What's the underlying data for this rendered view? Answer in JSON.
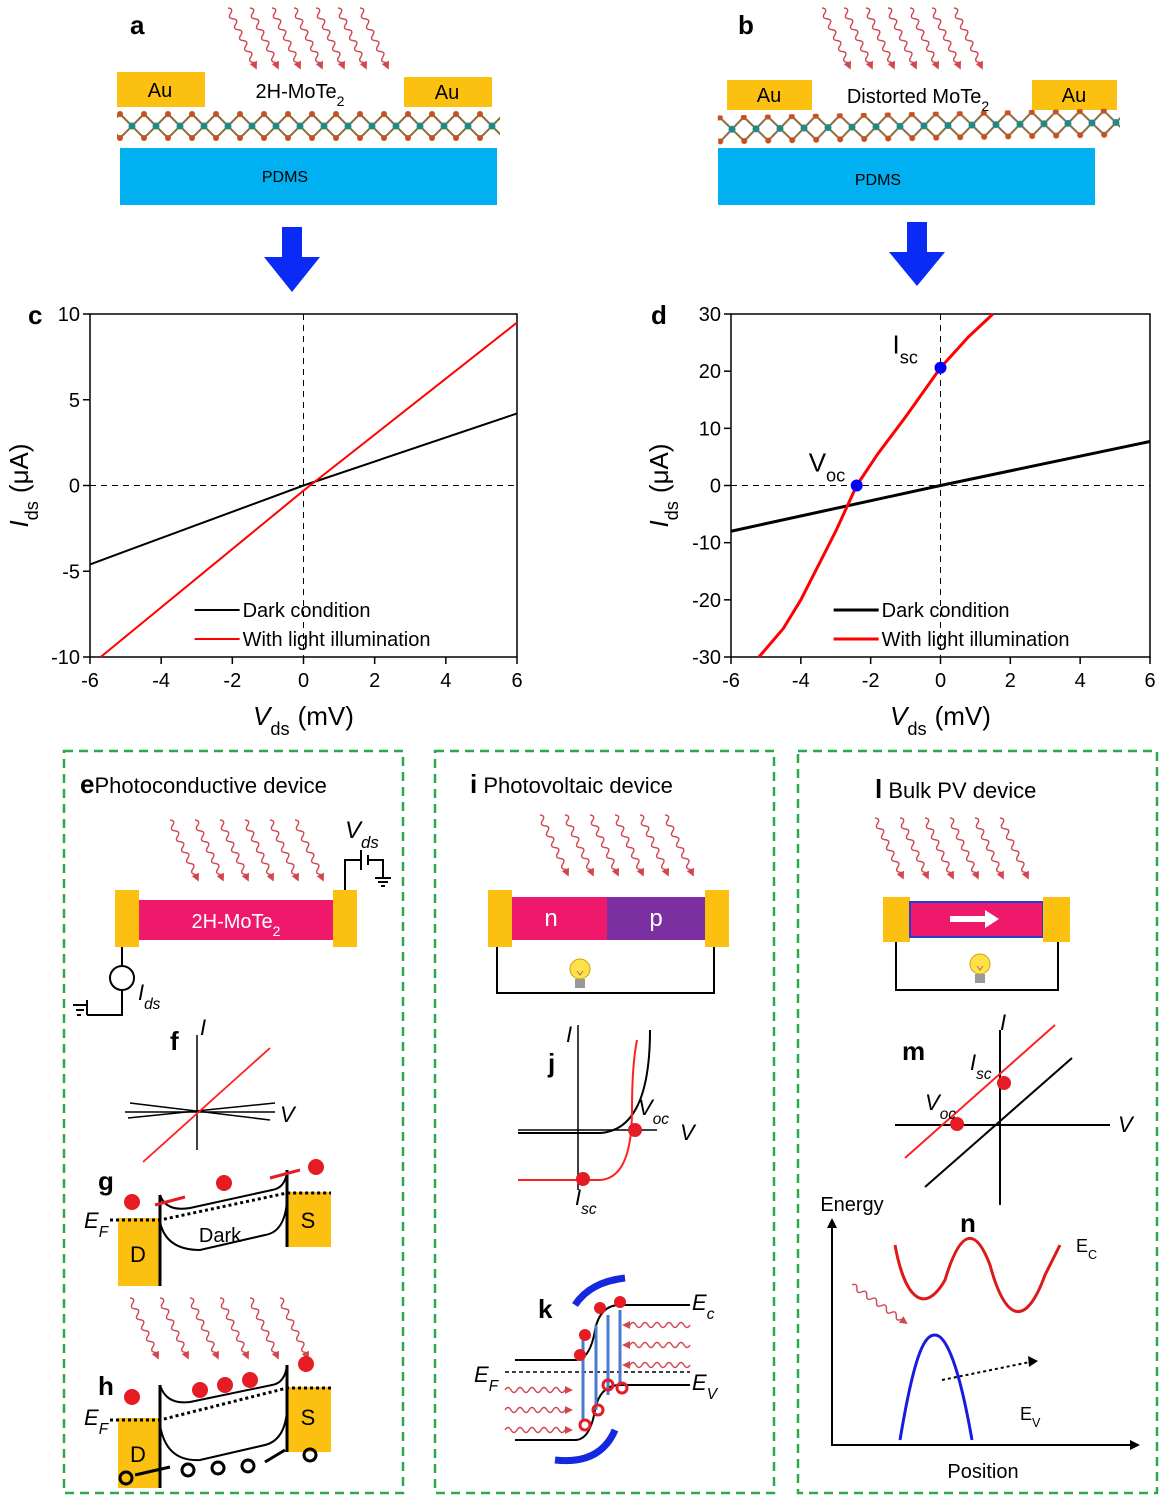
{
  "panels": {
    "a": {
      "label": "a",
      "electrode_left": "Au",
      "electrode_right": "Au",
      "material": {
        "text": "2H-MoTe",
        "sub": "2"
      },
      "substrate": "PDMS"
    },
    "b": {
      "label": "b",
      "electrode_left": "Au",
      "electrode_right": "Au",
      "material": {
        "text": "Distorted MoTe",
        "sub": "2"
      },
      "substrate": "PDMS"
    },
    "e": {
      "label": "e",
      "title": "Photoconductive device",
      "source": {
        "text": "V",
        "sub": "ds"
      },
      "channel": {
        "text": "2H-MoTe",
        "sub": "2"
      },
      "meter": {
        "text": "I",
        "sub": "ds"
      }
    },
    "f": {
      "label": "f",
      "y_axis": "I",
      "x_axis": "V"
    },
    "g": {
      "label": "g",
      "fermi": {
        "text": "E",
        "sub": "F"
      },
      "condition": "Dark",
      "drain": "D",
      "source": "S"
    },
    "h": {
      "label": "h",
      "fermi": {
        "text": "E",
        "sub": "F"
      },
      "drain": "D",
      "source": "S"
    },
    "i": {
      "label": "i",
      "title": "Photovoltaic device",
      "n": "n",
      "p": "p"
    },
    "j": {
      "label": "j",
      "y_axis": "I",
      "x_axis": "V",
      "voc": {
        "text": "V",
        "sub": "oc"
      },
      "isc": {
        "text": "I",
        "sub": "sc"
      }
    },
    "k": {
      "label": "k",
      "ec": {
        "text": "E",
        "sub": "c"
      },
      "ef": {
        "text": "E",
        "sub": "F"
      },
      "ev": {
        "text": "E",
        "sub": "V"
      }
    },
    "l": {
      "label": "l",
      "title": "Bulk PV device"
    },
    "m": {
      "label": "m",
      "y_axis": "I",
      "x_axis": "V",
      "isc": {
        "text": "I",
        "sub": "sc"
      },
      "voc": {
        "text": "V",
        "sub": "oc"
      }
    },
    "n": {
      "label": "n",
      "y_axis": "Energy",
      "x_axis": "Position",
      "ec": {
        "text": "E",
        "sub": "C"
      },
      "ev": {
        "text": "E",
        "sub": "V"
      }
    }
  },
  "chart_data": [
    {
      "type": "line",
      "label": "c",
      "x_label": {
        "text": "V",
        "sub": "ds",
        "unit": "(mV)"
      },
      "y_label": {
        "text": "I",
        "sub": "ds",
        "unit": "(μA)"
      },
      "xlim": [
        -6,
        6
      ],
      "xticks": [
        -6,
        -4,
        -2,
        0,
        2,
        4,
        6
      ],
      "ylim": [
        -10,
        10
      ],
      "yticks": [
        -10,
        -5,
        0,
        5,
        10
      ],
      "zero_lines": true,
      "legend": "lower center",
      "series": [
        {
          "name": "Dark condition",
          "color": "#000000",
          "x": [
            -6,
            0,
            6
          ],
          "values": [
            -4.6,
            0,
            4.2
          ]
        },
        {
          "name": "With light illumination",
          "color": "#ff0000",
          "x": [
            -5.7,
            0,
            6
          ],
          "values": [
            -10,
            -0.3,
            9.5
          ]
        }
      ]
    },
    {
      "type": "line",
      "label": "d",
      "x_label": {
        "text": "V",
        "sub": "ds",
        "unit": "(mV)"
      },
      "y_label": {
        "text": "I",
        "sub": "ds",
        "unit": "(μA)"
      },
      "xlim": [
        -6,
        6
      ],
      "xticks": [
        -6,
        -4,
        -2,
        0,
        2,
        4,
        6
      ],
      "ylim": [
        -30,
        30
      ],
      "yticks": [
        -30,
        -20,
        -10,
        0,
        10,
        20,
        30
      ],
      "zero_lines": true,
      "legend": "lower center",
      "series": [
        {
          "name": "Dark condition",
          "color": "#000000",
          "x": [
            -6,
            0,
            6
          ],
          "values": [
            -8,
            0,
            7.7
          ]
        },
        {
          "name": "With light illumination",
          "color": "#ff0000",
          "x": [
            -5.2,
            -4.5,
            -4,
            -3.5,
            -3,
            -2.4,
            -1.8,
            -1,
            0,
            0.8,
            1.5
          ],
          "values": [
            -30,
            -25,
            -20,
            -14,
            -8,
            0,
            5.5,
            12,
            20.6,
            26,
            30
          ]
        }
      ],
      "marker_color": "#0000ff",
      "annotations": [
        {
          "text": "V",
          "sub": "oc",
          "x": -2.4,
          "y": 0
        },
        {
          "text": "I",
          "sub": "sc",
          "x": 0,
          "y": 20.6
        }
      ]
    }
  ]
}
